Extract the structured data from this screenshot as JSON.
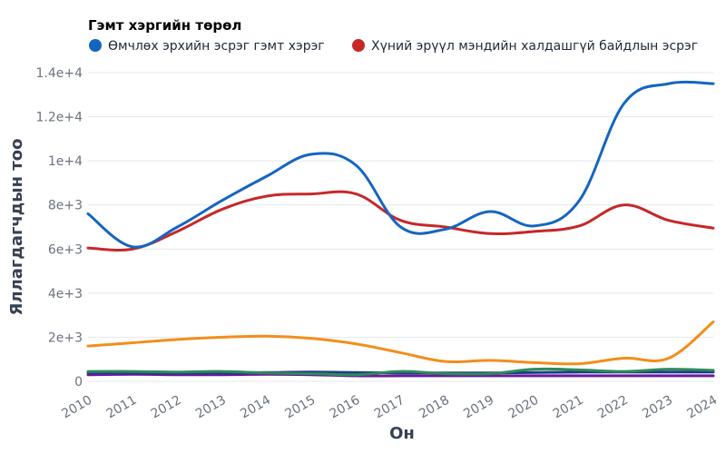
{
  "chart_data": {
    "type": "line",
    "legend_title": "Гэмт хэргийн төрөл",
    "legend_position": "top",
    "xlabel": "Он",
    "ylabel": "Яллагдагчдын тоо",
    "x": [
      2010,
      2011,
      2012,
      2013,
      2014,
      2015,
      2016,
      2017,
      2018,
      2019,
      2020,
      2021,
      2022,
      2023,
      2024
    ],
    "ylim": [
      0,
      14000
    ],
    "yticks": [
      0,
      2000,
      4000,
      6000,
      8000,
      10000,
      12000,
      14000
    ],
    "ytick_labels": [
      "0",
      "2e+3",
      "4e+3",
      "6e+3",
      "8e+3",
      "1e+4",
      "1.2e+4",
      "1.4e+4"
    ],
    "grid": true,
    "series": [
      {
        "name": "Өмчлөх эрхийн эсрэг гэмт хэрэг",
        "color": "#1565c0",
        "show_in_legend": true,
        "values": [
          7600,
          6100,
          7000,
          8200,
          9300,
          10300,
          9800,
          7000,
          6900,
          7700,
          7050,
          8200,
          12600,
          13500,
          13500
        ]
      },
      {
        "name": "Хүний эрүүл мэндийн халдашгүй байдлын эсрэг",
        "color": "#c62828",
        "show_in_legend": true,
        "values": [
          6050,
          6000,
          6800,
          7800,
          8400,
          8500,
          8500,
          7300,
          7000,
          6700,
          6800,
          7050,
          8000,
          7300,
          6950
        ]
      },
      {
        "name": "",
        "color": "#f28e1c",
        "show_in_legend": false,
        "values": [
          1600,
          1750,
          1900,
          2000,
          2050,
          1950,
          1700,
          1300,
          900,
          950,
          850,
          800,
          1050,
          1050,
          2700
        ]
      },
      {
        "name": "",
        "color": "#2e8b57",
        "show_in_legend": false,
        "values": [
          450,
          450,
          420,
          450,
          380,
          350,
          300,
          450,
          350,
          350,
          550,
          520,
          450,
          550,
          500
        ]
      },
      {
        "name": "",
        "color": "#1e3a8a",
        "show_in_legend": false,
        "values": [
          400,
          380,
          380,
          380,
          400,
          420,
          400,
          380,
          380,
          380,
          400,
          420,
          420,
          420,
          420
        ]
      },
      {
        "name": "",
        "color": "#6a1b9a",
        "show_in_legend": false,
        "values": [
          300,
          320,
          300,
          300,
          320,
          300,
          250,
          250,
          250,
          250,
          250,
          250,
          250,
          250,
          250
        ]
      }
    ]
  }
}
